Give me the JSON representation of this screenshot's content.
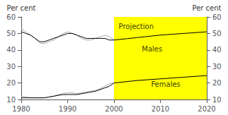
{
  "chart_data": {
    "type": "line",
    "background": "#ffffff",
    "ylabel": "Per cent",
    "y2label": "Per cent",
    "xlim": [
      1980,
      2020
    ],
    "xticks": [
      1980,
      1990,
      2000,
      2010,
      2020
    ],
    "ylim": [
      10,
      60
    ],
    "yticks": [
      10,
      20,
      30,
      40,
      50,
      60
    ],
    "y2lim": [
      10,
      60
    ],
    "y2ticks": [
      10,
      20,
      30,
      40,
      50,
      60
    ],
    "grid": false,
    "shaded_regions": [
      {
        "x": [
          2000,
          2020
        ],
        "color": "#FFFF00"
      }
    ],
    "series": [
      {
        "color": "#aaaaaa",
        "x": [
          1980,
          1981,
          1982,
          1983,
          1984,
          1985,
          1986,
          1987,
          1988,
          1989,
          1990,
          1991,
          1992,
          1993,
          1994,
          1995,
          1996,
          1997,
          1998,
          1999,
          2000
        ],
        "values": [
          53,
          51,
          49,
          47,
          44,
          44,
          45,
          46,
          48,
          50,
          51,
          50,
          49,
          47,
          46,
          46,
          47,
          48,
          49,
          48,
          46
        ]
      },
      {
        "color": "#000000",
        "x": [
          1980,
          1981,
          1982,
          1983,
          1984,
          1985,
          1986,
          1987,
          1988,
          1989,
          1990,
          1991,
          1992,
          1993,
          1994,
          1995,
          1996,
          1997,
          1998,
          1999,
          2000
        ],
        "values": [
          51,
          50,
          49,
          47,
          45,
          45,
          46,
          47,
          48,
          49,
          50,
          50,
          49,
          48,
          47,
          47,
          47,
          47,
          47,
          46,
          46
        ]
      },
      {
        "color": "#000000",
        "x": [
          2000,
          2005,
          2010,
          2015,
          2020
        ],
        "values": [
          46,
          47.5,
          49,
          50,
          51
        ]
      },
      {
        "color": "#aaaaaa",
        "x": [
          1980,
          1981,
          1982,
          1983,
          1984,
          1985,
          1986,
          1987,
          1988,
          1989,
          1990,
          1991,
          1992,
          1993,
          1994,
          1995,
          1996,
          1997,
          1998,
          1999,
          2000
        ],
        "values": [
          12,
          11.5,
          11,
          11,
          11,
          11,
          11.5,
          12,
          13,
          13.5,
          14,
          14,
          13.5,
          14,
          14.5,
          15,
          15.5,
          16.5,
          18,
          19.5,
          20
        ]
      },
      {
        "color": "#000000",
        "x": [
          1980,
          1981,
          1982,
          1983,
          1984,
          1985,
          1986,
          1987,
          1988,
          1989,
          1990,
          1991,
          1992,
          1993,
          1994,
          1995,
          1996,
          1997,
          1998,
          1999,
          2000
        ],
        "values": [
          11,
          11,
          11,
          11,
          11,
          11,
          11.5,
          12,
          12.5,
          13,
          13,
          13,
          13,
          13.5,
          14,
          14.5,
          15,
          16,
          17,
          18,
          20
        ]
      },
      {
        "color": "#000000",
        "x": [
          2000,
          2005,
          2010,
          2015,
          2020
        ],
        "values": [
          20,
          21.5,
          22.5,
          23.5,
          24.5
        ]
      }
    ],
    "annotations": [
      {
        "text": "Projection",
        "x": 2001,
        "y": 56.5
      },
      {
        "text": "Males",
        "x": 2006,
        "y": 42.5
      },
      {
        "text": "Females",
        "x": 2008,
        "y": 21.5
      }
    ]
  }
}
